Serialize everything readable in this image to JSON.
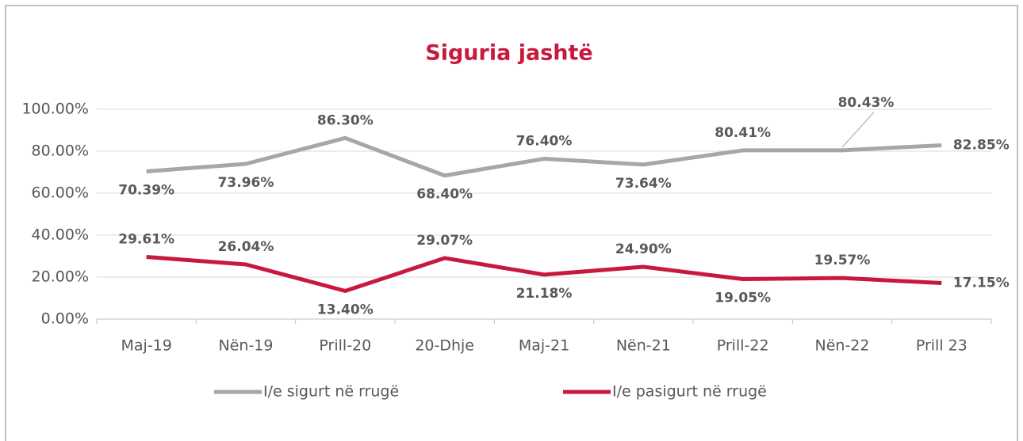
{
  "chart_data": {
    "type": "line",
    "title": "Siguria jashtë",
    "categories": [
      "Maj-19",
      "Nën-19",
      "Prill-20",
      "20-Dhje",
      "Maj-21",
      "Nën-21",
      "Prill-22",
      "Nën-22",
      "Prill 23"
    ],
    "series": [
      {
        "name": "I/e sigurt në rrugë",
        "color": "#a6a6ab",
        "values": [
          70.39,
          73.96,
          86.3,
          68.4,
          76.4,
          73.64,
          80.41,
          80.43,
          82.85
        ],
        "value_labels": [
          "70.39%",
          "73.96%",
          "86.30%",
          "68.40%",
          "76.40%",
          "73.64%",
          "80.41%",
          "80.43%",
          "82.85%"
        ]
      },
      {
        "name": "I/e pasigurt në rrugë",
        "color": "#c8193c",
        "values": [
          29.61,
          26.04,
          13.4,
          29.07,
          21.18,
          24.9,
          19.05,
          19.57,
          17.15
        ],
        "value_labels": [
          "29.61%",
          "26.04%",
          "13.40%",
          "29.07%",
          "21.18%",
          "24.90%",
          "19.05%",
          "19.57%",
          "17.15%"
        ]
      }
    ],
    "ylim": [
      0,
      100
    ],
    "yticks": [
      {
        "value": 0,
        "label": "0.00%"
      },
      {
        "value": 20,
        "label": "20.00%"
      },
      {
        "value": 40,
        "label": "40.00%"
      },
      {
        "value": 60,
        "label": "60.00%"
      },
      {
        "value": 80,
        "label": "80.00%"
      },
      {
        "value": 100,
        "label": "100.00%"
      }
    ],
    "grid": true,
    "legend": "bottom"
  }
}
